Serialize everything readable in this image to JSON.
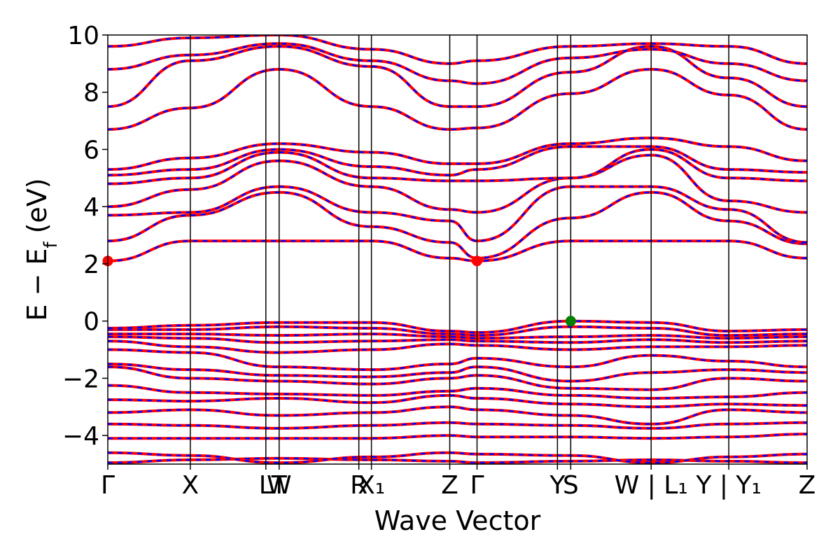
{
  "chart_data": {
    "type": "line",
    "title": "",
    "xlabel": "Wave Vector",
    "ylabel": "E − E_f (eV)",
    "ylabel_parts": {
      "main": "E − E",
      "sub": "f",
      "unit": " (eV)"
    },
    "ylim": [
      -5,
      10
    ],
    "y_ticks": [
      -4,
      -2,
      0,
      2,
      4,
      6,
      8,
      10
    ],
    "y_tick_labels": [
      "−4",
      "−2",
      "0",
      "2",
      "4",
      "6",
      "8",
      "10"
    ],
    "x_range": [
      0,
      1
    ],
    "high_symmetry_points": [
      {
        "label": "Γ",
        "x": 0.0
      },
      {
        "label": "X",
        "x": 0.118
      },
      {
        "label": "L",
        "x": 0.226
      },
      {
        "label": "T",
        "x": 0.245
      },
      {
        "label": "W",
        "x": 0.245
      },
      {
        "label": "R",
        "x": 0.359
      },
      {
        "label": "X₁",
        "x": 0.377
      },
      {
        "label": "Z",
        "x": 0.489
      },
      {
        "label": "Γ",
        "x": 0.528
      },
      {
        "label": "Y",
        "x": 0.643
      },
      {
        "label": "S",
        "x": 0.662
      },
      {
        "label": "W | L₁",
        "x": 0.777
      },
      {
        "label": "Y | Y₁",
        "x": 0.888
      },
      {
        "label": "Z",
        "x": 1.0
      }
    ],
    "vertical_lines_x": [
      0.118,
      0.226,
      0.245,
      0.359,
      0.377,
      0.489,
      0.528,
      0.643,
      0.662,
      0.777,
      0.888
    ],
    "band_color_primary": "#ff0000",
    "band_color_secondary": "#0000ff",
    "cbm_marker": {
      "x": 0.528,
      "y": 2.1,
      "color": "#ff0000"
    },
    "cbm_marker_edge": {
      "x": 0.0,
      "y": 2.1,
      "color": "#ff0000"
    },
    "vbm_marker": {
      "x": 0.662,
      "y": 0.0,
      "color": "#008000"
    },
    "bands": [
      {
        "x": [
          0,
          0.118,
          0.245,
          0.377,
          0.489,
          0.528,
          0.662,
          0.777,
          0.888,
          1
        ],
        "y": [
          -4.95,
          -4.85,
          -4.8,
          -4.85,
          -4.9,
          -4.95,
          -4.9,
          -4.85,
          -4.9,
          -4.95
        ]
      },
      {
        "x": [
          0,
          0.118,
          0.245,
          0.377,
          0.489,
          0.528,
          0.662,
          0.777,
          0.888,
          1
        ],
        "y": [
          -4.6,
          -4.7,
          -4.95,
          -4.75,
          -4.6,
          -4.65,
          -4.7,
          -4.95,
          -4.75,
          -4.65
        ]
      },
      {
        "x": [
          0,
          0.118,
          0.245,
          0.377,
          0.489,
          0.528,
          0.662,
          0.777,
          0.888,
          1
        ],
        "y": [
          -4.1,
          -4.1,
          -4.1,
          -4.1,
          -4.0,
          -4.05,
          -4.05,
          -4.1,
          -4.05,
          -3.95
        ]
      },
      {
        "x": [
          0,
          0.118,
          0.245,
          0.377,
          0.489,
          0.528,
          0.662,
          0.777,
          0.888,
          1
        ],
        "y": [
          -3.6,
          -3.65,
          -3.75,
          -3.65,
          -3.55,
          -3.6,
          -3.65,
          -3.75,
          -3.6,
          -3.55
        ]
      },
      {
        "x": [
          0,
          0.118,
          0.245,
          0.377,
          0.489,
          0.528,
          0.662,
          0.777,
          0.888,
          1
        ],
        "y": [
          -3.2,
          -3.1,
          -3.3,
          -3.2,
          -3.0,
          -3.1,
          -3.3,
          -3.6,
          -3.1,
          -3.2
        ]
      },
      {
        "x": [
          0,
          0.118,
          0.245,
          0.377,
          0.489,
          0.528,
          0.662,
          0.777,
          0.888,
          1
        ],
        "y": [
          -2.75,
          -2.8,
          -2.7,
          -2.85,
          -2.6,
          -2.7,
          -2.9,
          -3.0,
          -2.9,
          -2.95
        ]
      },
      {
        "x": [
          0,
          0.118,
          0.245,
          0.377,
          0.489,
          0.528,
          0.662,
          0.777,
          0.888,
          1
        ],
        "y": [
          -2.25,
          -2.5,
          -2.55,
          -2.6,
          -2.45,
          -2.35,
          -2.6,
          -2.7,
          -2.65,
          -2.5
        ]
      },
      {
        "x": [
          0,
          0.118,
          0.245,
          0.377,
          0.489,
          0.528,
          0.662,
          0.777,
          0.888,
          1
        ],
        "y": [
          -1.6,
          -2.0,
          -2.1,
          -2.2,
          -2.0,
          -1.9,
          -2.35,
          -2.4,
          -2.0,
          -2.1
        ]
      },
      {
        "x": [
          0,
          0.118,
          0.245,
          0.377,
          0.489,
          0.528,
          0.662,
          0.777,
          0.888,
          1
        ],
        "y": [
          -1.5,
          -1.7,
          -1.9,
          -1.95,
          -1.8,
          -1.6,
          -2.1,
          -1.8,
          -1.7,
          -1.8
        ]
      },
      {
        "x": [
          0,
          0.118,
          0.245,
          0.377,
          0.489,
          0.528,
          0.662,
          0.777,
          0.888,
          1
        ],
        "y": [
          -1.0,
          -1.1,
          -1.6,
          -1.7,
          -1.5,
          -1.3,
          -1.6,
          -1.2,
          -1.4,
          -1.6
        ]
      },
      {
        "x": [
          0,
          0.118,
          0.245,
          0.377,
          0.489,
          0.528,
          0.662,
          0.777,
          0.888,
          1
        ],
        "y": [
          -0.7,
          -0.9,
          -1.1,
          -1.0,
          -0.8,
          -0.85,
          -1.0,
          -0.9,
          -0.9,
          -0.85
        ]
      },
      {
        "x": [
          0,
          0.118,
          0.245,
          0.377,
          0.489,
          0.528,
          0.662,
          0.777,
          0.888,
          1
        ],
        "y": [
          -0.55,
          -0.6,
          -0.75,
          -0.7,
          -0.65,
          -0.7,
          -0.75,
          -0.65,
          -0.75,
          -0.7
        ]
      },
      {
        "x": [
          0,
          0.118,
          0.245,
          0.377,
          0.489,
          0.528,
          0.662,
          0.777,
          0.888,
          1
        ],
        "y": [
          -0.45,
          -0.45,
          -0.5,
          -0.45,
          -0.55,
          -0.6,
          -0.55,
          -0.5,
          -0.6,
          -0.55
        ]
      },
      {
        "x": [
          0,
          0.118,
          0.245,
          0.377,
          0.489,
          0.528,
          0.662,
          0.777,
          0.888,
          1
        ],
        "y": [
          -0.3,
          -0.3,
          -0.2,
          -0.25,
          -0.45,
          -0.5,
          -0.2,
          -0.25,
          -0.5,
          -0.45
        ]
      },
      {
        "x": [
          0,
          0.118,
          0.245,
          0.377,
          0.489,
          0.528,
          0.662,
          0.777,
          0.888,
          1
        ],
        "y": [
          -0.25,
          -0.15,
          -0.05,
          -0.05,
          -0.35,
          -0.4,
          0.0,
          -0.05,
          -0.35,
          -0.3
        ]
      },
      {
        "x": [
          0,
          0.118,
          0.245,
          0.377,
          0.489,
          0.528,
          0.662,
          0.777,
          0.888,
          1
        ],
        "y": [
          2.1,
          2.8,
          2.8,
          2.8,
          2.2,
          2.1,
          2.8,
          2.8,
          2.8,
          2.2
        ]
      },
      {
        "x": [
          0,
          0.118,
          0.245,
          0.377,
          0.489,
          0.528,
          0.662,
          0.777,
          0.888,
          1
        ],
        "y": [
          2.8,
          3.7,
          4.5,
          3.3,
          2.75,
          2.2,
          3.6,
          4.5,
          3.5,
          2.7
        ]
      },
      {
        "x": [
          0,
          0.118,
          0.245,
          0.377,
          0.489,
          0.528,
          0.662,
          0.777,
          0.888,
          1
        ],
        "y": [
          3.7,
          3.8,
          4.7,
          3.8,
          3.5,
          2.8,
          4.7,
          4.7,
          3.9,
          2.75
        ]
      },
      {
        "x": [
          0,
          0.118,
          0.245,
          0.377,
          0.489,
          0.528,
          0.662,
          0.777,
          0.888,
          1
        ],
        "y": [
          4.0,
          4.6,
          5.6,
          4.7,
          3.9,
          3.8,
          5.0,
          5.8,
          4.2,
          3.8
        ]
      },
      {
        "x": [
          0,
          0.118,
          0.245,
          0.377,
          0.489,
          0.528,
          0.662,
          0.777,
          0.888,
          1
        ],
        "y": [
          4.8,
          5.0,
          5.9,
          5.0,
          4.9,
          4.9,
          5.0,
          6.0,
          5.0,
          4.9
        ]
      },
      {
        "x": [
          0,
          0.118,
          0.245,
          0.377,
          0.489,
          0.528,
          0.662,
          0.777,
          0.888,
          1
        ],
        "y": [
          5.1,
          5.3,
          6.0,
          5.4,
          5.1,
          5.3,
          6.1,
          6.1,
          5.3,
          5.2
        ]
      },
      {
        "x": [
          0,
          0.118,
          0.245,
          0.377,
          0.489,
          0.528,
          0.662,
          0.777,
          0.888,
          1
        ],
        "y": [
          5.3,
          5.7,
          6.2,
          5.9,
          5.5,
          5.5,
          6.2,
          6.4,
          6.1,
          5.6
        ]
      },
      {
        "x": [
          0,
          0.118,
          0.245,
          0.377,
          0.489,
          0.528,
          0.662,
          0.777,
          0.888,
          1
        ],
        "y": [
          6.7,
          7.45,
          8.8,
          7.5,
          6.7,
          6.75,
          7.95,
          8.8,
          7.9,
          6.7
        ]
      },
      {
        "x": [
          0,
          0.118,
          0.245,
          0.377,
          0.489,
          0.528,
          0.662,
          0.777,
          0.888,
          1
        ],
        "y": [
          7.5,
          9.1,
          9.6,
          8.9,
          7.5,
          7.5,
          8.7,
          9.6,
          8.5,
          7.5
        ]
      },
      {
        "x": [
          0,
          0.118,
          0.245,
          0.377,
          0.489,
          0.528,
          0.662,
          0.777,
          0.888,
          1
        ],
        "y": [
          8.8,
          9.3,
          9.7,
          9.1,
          8.4,
          8.3,
          9.2,
          9.5,
          9.0,
          8.4
        ]
      },
      {
        "x": [
          0,
          0.118,
          0.245,
          0.377,
          0.489,
          0.528,
          0.662,
          0.777,
          0.888,
          1
        ],
        "y": [
          9.6,
          9.9,
          10.0,
          9.5,
          9.0,
          9.1,
          9.6,
          9.7,
          9.6,
          9.0
        ]
      }
    ]
  }
}
